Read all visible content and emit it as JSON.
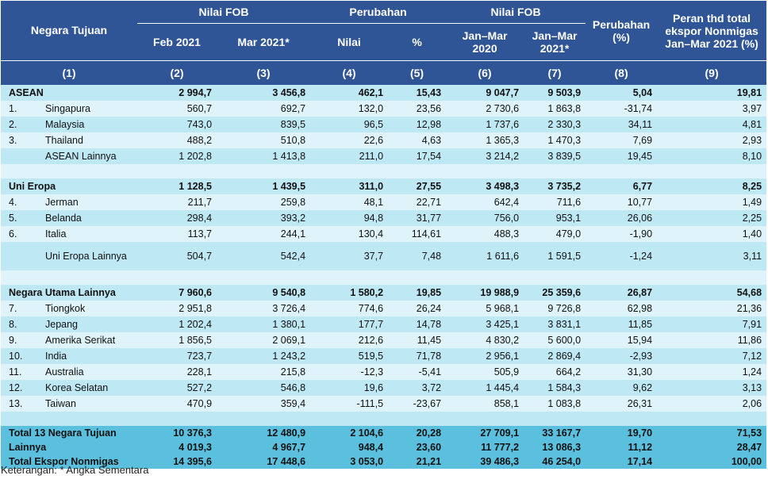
{
  "header": {
    "negara": "Negara Tujuan",
    "nilai_fob_1": "Nilai FOB",
    "perubahan_1": "Perubahan",
    "nilai_fob_2": "Nilai FOB",
    "perubahan_2": "Perubahan (%)",
    "peran": "Peran thd total ekspor Nonmigas Jan–Mar 2021 (%)",
    "feb": "Feb 2021",
    "mar": "Mar 2021*",
    "nilai": "Nilai",
    "pct": "%",
    "janmar2020": "Jan–Mar 2020",
    "janmar2021": "Jan–Mar 2021*",
    "col_numbers": [
      "(1)",
      "(2)",
      "(3)",
      "(4)",
      "(5)",
      "(6)",
      "(7)",
      "(8)",
      "(9)"
    ]
  },
  "groups": [
    {
      "name": "ASEAN",
      "values": [
        "2 994,7",
        "3 456,8",
        "462,1",
        "15,43",
        "9 047,7",
        "9 503,9",
        "5,04",
        "19,81"
      ],
      "rows": [
        {
          "no": "1.",
          "name": "Singapura",
          "values": [
            "560,7",
            "692,7",
            "132,0",
            "23,56",
            "2 730,6",
            "1 863,8",
            "-31,74",
            "3,97"
          ]
        },
        {
          "no": "2.",
          "name": "Malaysia",
          "values": [
            "743,0",
            "839,5",
            "96,5",
            "12,98",
            "1 737,6",
            "2 330,3",
            "34,11",
            "4,81"
          ]
        },
        {
          "no": "3.",
          "name": "Thailand",
          "values": [
            "488,2",
            "510,8",
            "22,6",
            "4,63",
            "1 365,3",
            "1 470,3",
            "7,69",
            "2,93"
          ]
        },
        {
          "no": "",
          "name": "ASEAN Lainnya",
          "values": [
            "1 202,8",
            "1 413,8",
            "211,0",
            "17,54",
            "3 214,2",
            "3 839,5",
            "19,45",
            "8,10"
          ]
        }
      ]
    },
    {
      "name": "Uni Eropa",
      "values": [
        "1 128,5",
        "1 439,5",
        "311,0",
        "27,55",
        "3 498,3",
        "3 735,2",
        "6,77",
        "8,25"
      ],
      "rows": [
        {
          "no": "4.",
          "name": "Jerman",
          "values": [
            "211,7",
            "259,8",
            "48,1",
            "22,71",
            "642,4",
            "711,6",
            "10,77",
            "1,49"
          ]
        },
        {
          "no": "5.",
          "name": "Belanda",
          "values": [
            "298,4",
            "393,2",
            "94,8",
            "31,77",
            "756,0",
            "953,1",
            "26,06",
            "2,25"
          ]
        },
        {
          "no": "6.",
          "name": "Italia",
          "values": [
            "113,7",
            "244,1",
            "130,4",
            "114,61",
            "488,3",
            "479,0",
            "-1,90",
            "1,40"
          ]
        },
        {
          "no": "",
          "name": "Uni Eropa Lainnya",
          "values": [
            "504,7",
            "542,4",
            "37,7",
            "7,48",
            "1 611,6",
            "1 591,5",
            "-1,24",
            "3,11"
          ]
        }
      ]
    },
    {
      "name": "Negara Utama Lainnya",
      "values": [
        "7 960,6",
        "9 540,8",
        "1 580,2",
        "19,85",
        "19 988,9",
        "25 359,6",
        "26,87",
        "54,68"
      ],
      "rows": [
        {
          "no": "7.",
          "name": "Tiongkok",
          "values": [
            "2 951,8",
            "3 726,4",
            "774,6",
            "26,24",
            "5 968,1",
            "9 726,8",
            "62,98",
            "21,36"
          ]
        },
        {
          "no": "8.",
          "name": "Jepang",
          "values": [
            "1 202,4",
            "1 380,1",
            "177,7",
            "14,78",
            "3 425,1",
            "3 831,1",
            "11,85",
            "7,91"
          ]
        },
        {
          "no": "9.",
          "name": "Amerika Serikat",
          "values": [
            "1 856,5",
            "2 069,1",
            "212,6",
            "11,45",
            "4 830,2",
            "5 600,0",
            "15,94",
            "11,86"
          ]
        },
        {
          "no": "10.",
          "name": "India",
          "values": [
            "723,7",
            "1 243,2",
            "519,5",
            "71,78",
            "2 956,1",
            "2 869,4",
            "-2,93",
            "7,12"
          ]
        },
        {
          "no": "11.",
          "name": "Australia",
          "values": [
            "228,1",
            "215,8",
            "-12,3",
            "-5,41",
            "505,9",
            "664,2",
            "31,30",
            "1,24"
          ]
        },
        {
          "no": "12.",
          "name": "Korea Selatan",
          "values": [
            "527,2",
            "546,8",
            "19,6",
            "3,72",
            "1 445,4",
            "1 584,3",
            "9,62",
            "3,13"
          ]
        },
        {
          "no": "13.",
          "name": "Taiwan",
          "values": [
            "470,9",
            "359,4",
            "-111,5",
            "-23,67",
            "858,1",
            "1 083,8",
            "26,31",
            "2,06"
          ]
        }
      ]
    }
  ],
  "totals": [
    {
      "name": "Total 13 Negara Tujuan",
      "values": [
        "10 376,3",
        "12 480,9",
        "2 104,6",
        "20,28",
        "27 709,1",
        "33 167,7",
        "19,70",
        "71,53"
      ]
    },
    {
      "name": "Lainnya",
      "values": [
        "4 019,3",
        "4 967,7",
        "948,4",
        "23,60",
        "11 777,2",
        "13 086,3",
        "11,12",
        "28,47"
      ]
    },
    {
      "name": "Total Ekspor Nonmigas",
      "values": [
        "14 395,6",
        "17 448,6",
        "3 053,0",
        "21,21",
        "39 486,3",
        "46 254,0",
        "17,14",
        "100,00"
      ]
    }
  ],
  "note": "Keterangan: * Angka Sementara",
  "colors": {
    "header_bg": "#2f5597",
    "row_light": "#dff3fa",
    "row_dark": "#bfe8f5",
    "total_bg": "#5bc0de"
  }
}
